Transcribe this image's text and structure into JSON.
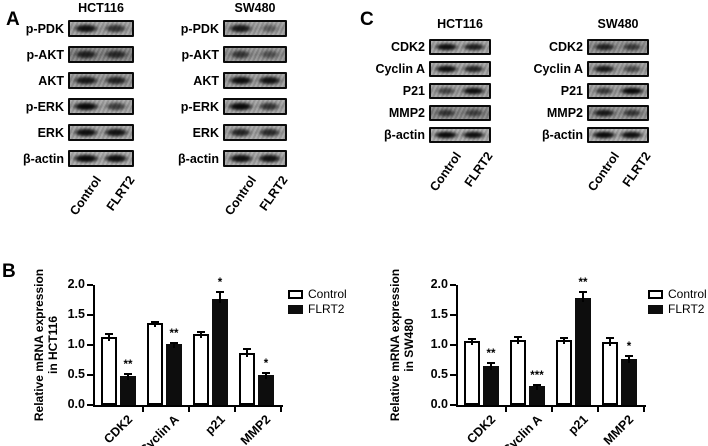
{
  "panel_labels": {
    "A": "A",
    "B": "B",
    "C": "C"
  },
  "colors": {
    "ink": "#000000",
    "control_fill": "#ffffff",
    "flrt2_fill": "#0d0d0d",
    "background": "#ffffff"
  },
  "blot_groups": [
    {
      "panel": "A",
      "cell_line": "HCT116",
      "lane_labels": [
        "Control",
        "FLRT2"
      ],
      "rows": [
        {
          "label": "p-PDK",
          "bands": [
            0.92,
            0.6
          ],
          "bg": 0.32
        },
        {
          "label": "p-AKT",
          "bands": [
            0.75,
            0.65
          ],
          "bg": 0.55
        },
        {
          "label": "AKT",
          "bands": [
            0.85,
            0.75
          ],
          "bg": 0.4
        },
        {
          "label": "p-ERK",
          "bands": [
            1.0,
            0.5
          ],
          "bg": 0.3
        },
        {
          "label": "ERK",
          "bands": [
            0.95,
            0.9
          ],
          "bg": 0.3
        },
        {
          "label": "β-actin",
          "bands": [
            1.0,
            0.95
          ],
          "bg": 0.25
        }
      ]
    },
    {
      "panel": "A",
      "cell_line": "SW480",
      "lane_labels": [
        "Control",
        "FLRT2"
      ],
      "rows": [
        {
          "label": "p-PDK",
          "bands": [
            0.85,
            0.18
          ],
          "bg": 0.35
        },
        {
          "label": "p-AKT",
          "bands": [
            0.55,
            0.25
          ],
          "bg": 0.45
        },
        {
          "label": "AKT",
          "bands": [
            0.95,
            0.9
          ],
          "bg": 0.35
        },
        {
          "label": "p-ERK",
          "bands": [
            1.0,
            0.6
          ],
          "bg": 0.3
        },
        {
          "label": "ERK",
          "bands": [
            0.75,
            0.7
          ],
          "bg": 0.3
        },
        {
          "label": "β-actin",
          "bands": [
            0.95,
            0.92
          ],
          "bg": 0.28
        }
      ]
    },
    {
      "panel": "C",
      "cell_line": "HCT116",
      "lane_labels": [
        "Control",
        "FLRT2"
      ],
      "rows": [
        {
          "label": "CDK2",
          "bands": [
            0.95,
            0.8
          ],
          "bg": 0.3
        },
        {
          "label": "Cyclin A",
          "bands": [
            0.95,
            0.75
          ],
          "bg": 0.3
        },
        {
          "label": "P21",
          "bands": [
            0.45,
            0.95
          ],
          "bg": 0.35
        },
        {
          "label": "MMP2",
          "bands": [
            0.55,
            0.4
          ],
          "bg": 0.52
        },
        {
          "label": "β-actin",
          "bands": [
            1.0,
            0.95
          ],
          "bg": 0.25
        }
      ]
    },
    {
      "panel": "C",
      "cell_line": "SW480",
      "lane_labels": [
        "Control",
        "FLRT2"
      ],
      "rows": [
        {
          "label": "CDK2",
          "bands": [
            0.75,
            0.5
          ],
          "bg": 0.45
        },
        {
          "label": "Cyclin A",
          "bands": [
            0.85,
            0.4
          ],
          "bg": 0.35
        },
        {
          "label": "P21",
          "bands": [
            0.55,
            1.0
          ],
          "bg": 0.35
        },
        {
          "label": "MMP2",
          "bands": [
            0.85,
            0.55
          ],
          "bg": 0.45
        },
        {
          "label": "β-actin",
          "bands": [
            1.0,
            0.95
          ],
          "bg": 0.25
        }
      ]
    }
  ],
  "chart_data": [
    {
      "type": "bar",
      "panel": "B",
      "categories": [
        "CDK2",
        "Cyclin A",
        "p21",
        "MMP2"
      ],
      "series": [
        {
          "name": "Control",
          "color": "#ffffff",
          "values": [
            1.14,
            1.36,
            1.19,
            0.86
          ],
          "errors": [
            0.05,
            0.02,
            0.03,
            0.07
          ],
          "sig": [
            "",
            "",
            "",
            ""
          ]
        },
        {
          "name": "FLRT2",
          "color": "#0d0d0d",
          "values": [
            0.48,
            1.01,
            1.76,
            0.5
          ],
          "errors": [
            0.03,
            0.02,
            0.13,
            0.03
          ],
          "sig": [
            "**",
            "**",
            "*",
            "*"
          ]
        }
      ],
      "ylabel_line1": "Relative mRNA expression",
      "ylabel_line2": "in HCT116",
      "ylim": [
        0,
        2
      ],
      "yticks": [
        "0.0",
        "0.5",
        "1.0",
        "1.5",
        "2.0"
      ],
      "grid": "off",
      "legend": [
        "Control",
        "FLRT2"
      ],
      "legend_position": "right"
    },
    {
      "type": "bar",
      "panel": "B",
      "categories": [
        "CDK2",
        "Cyclin A",
        "p21",
        "MMP2"
      ],
      "series": [
        {
          "name": "Control",
          "color": "#ffffff",
          "values": [
            1.07,
            1.09,
            1.08,
            1.05
          ],
          "errors": [
            0.03,
            0.04,
            0.04,
            0.06
          ],
          "sig": [
            "",
            "",
            "",
            ""
          ]
        },
        {
          "name": "FLRT2",
          "color": "#0d0d0d",
          "values": [
            0.65,
            0.31,
            1.78,
            0.76
          ],
          "errors": [
            0.05,
            0.03,
            0.1,
            0.06
          ],
          "sig": [
            "**",
            "***",
            "**",
            "*"
          ]
        }
      ],
      "ylabel_line1": "Relative mRNA expression",
      "ylabel_line2": "in SW480",
      "ylim": [
        0,
        2
      ],
      "yticks": [
        "0.0",
        "0.5",
        "1.0",
        "1.5",
        "2.0"
      ],
      "grid": "off",
      "legend": [
        "Control",
        "FLRT2"
      ],
      "legend_position": "right"
    }
  ]
}
